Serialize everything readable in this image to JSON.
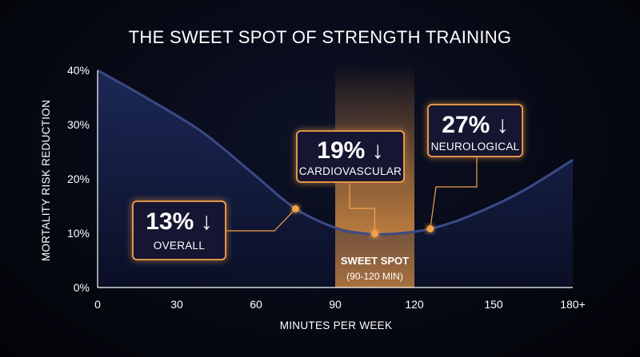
{
  "colors": {
    "accent": "#f5a14a",
    "curve": "#3b4a86",
    "area_top": "#1d2a5a",
    "background": "#05070f"
  },
  "chart_data": {
    "type": "area",
    "title": "THE SWEET SPOT OF STRENGTH TRAINING",
    "xlabel": "MINUTES PER WEEK",
    "ylabel": "MORTALITY RISK REDUCTION",
    "xlim": [
      0,
      180
    ],
    "ylim": [
      0,
      40
    ],
    "x_ticks": [
      {
        "value": 0,
        "label": "0"
      },
      {
        "value": 30,
        "label": "30"
      },
      {
        "value": 60,
        "label": "60"
      },
      {
        "value": 90,
        "label": "90"
      },
      {
        "value": 120,
        "label": "120"
      },
      {
        "value": 150,
        "label": "150"
      },
      {
        "value": 180,
        "label": "180+"
      }
    ],
    "y_ticks": [
      {
        "value": 0,
        "label": "0%"
      },
      {
        "value": 10,
        "label": "10%"
      },
      {
        "value": 20,
        "label": "20%"
      },
      {
        "value": 30,
        "label": "30%"
      },
      {
        "value": 40,
        "label": "40%"
      }
    ],
    "series": [
      {
        "x": [
          0,
          20,
          40,
          60,
          75,
          90,
          100,
          107,
          115,
          126,
          140,
          160,
          180
        ],
        "values": [
          40,
          34.5,
          28.5,
          20.5,
          14.5,
          11.0,
          10.0,
          9.8,
          10.0,
          10.8,
          13.0,
          17.5,
          23.5
        ]
      }
    ],
    "highlight_band": {
      "x_range": [
        90,
        120
      ],
      "label": "SWEET SPOT",
      "sublabel": "(90-120 MIN)"
    },
    "markers": [
      {
        "x": 75,
        "y": 14.5,
        "big": "13% ↓",
        "small": "OVERALL"
      },
      {
        "x": 105,
        "y": 9.9,
        "big": "19% ↓",
        "small": "CARDIOVASCULAR"
      },
      {
        "x": 126,
        "y": 10.8,
        "big": "27% ↓",
        "small": "NEUROLOGICAL"
      }
    ],
    "grid": false,
    "legend": "none"
  }
}
